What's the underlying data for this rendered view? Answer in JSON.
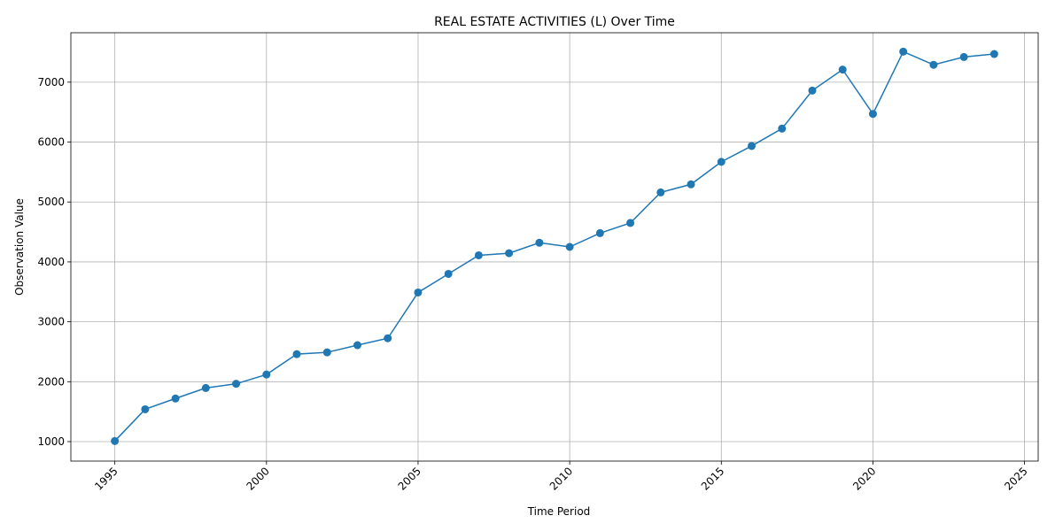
{
  "chart_data": {
    "type": "line",
    "title": "REAL ESTATE ACTIVITIES (L) Over Time",
    "xlabel": "Time Period",
    "ylabel": "Observation Value",
    "x": [
      1995,
      1996,
      1997,
      1998,
      1999,
      2000,
      2001,
      2002,
      2003,
      2004,
      2005,
      2006,
      2007,
      2008,
      2009,
      2010,
      2011,
      2012,
      2013,
      2014,
      2015,
      2016,
      2017,
      2018,
      2019,
      2020,
      2021,
      2022,
      2023,
      2024
    ],
    "series": [
      {
        "values": [
          1010,
          1540,
          1720,
          1895,
          1965,
          2120,
          2460,
          2490,
          2610,
          2725,
          3490,
          3800,
          4110,
          4145,
          4320,
          4250,
          4480,
          4650,
          5160,
          5295,
          5670,
          5935,
          6225,
          6860,
          7210,
          6470,
          7510,
          7290,
          7420,
          7470
        ]
      }
    ],
    "xticks": [
      "1995",
      "2000",
      "2005",
      "2010",
      "2015",
      "2020",
      "2025"
    ],
    "yticks": [
      "1000",
      "2000",
      "3000",
      "4000",
      "5000",
      "6000",
      "7000"
    ],
    "xlim": [
      1993.55,
      1995.0
    ],
    "xlim_end": 2025.45,
    "ylim": [
      675,
      7825
    ],
    "grid": true,
    "line_color": "#1f77b4",
    "marker": "circle"
  }
}
